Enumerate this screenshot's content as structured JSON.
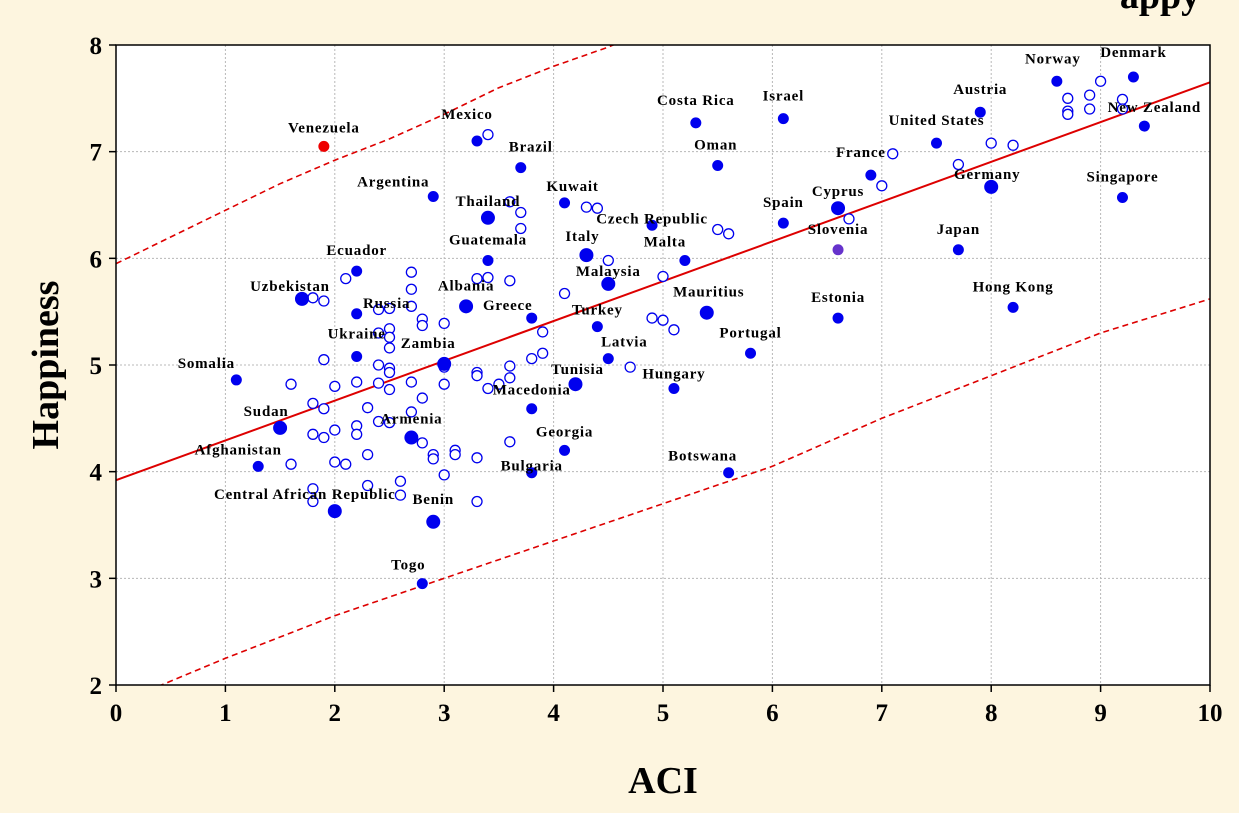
{
  "chart_data": {
    "type": "scatter",
    "title": "",
    "top_text_fragment": "appy",
    "xlabel": "ACI",
    "ylabel": "Happiness",
    "xlim": [
      0,
      10
    ],
    "ylim": [
      2,
      8
    ],
    "xticks": [
      0,
      1,
      2,
      3,
      4,
      5,
      6,
      7,
      8,
      9,
      10
    ],
    "yticks": [
      2,
      3,
      4,
      5,
      6,
      7,
      8
    ],
    "grid": true,
    "colors": {
      "filled": "#0000ee",
      "hollow_stroke": "#0000ee",
      "highlight": "#ee0000",
      "purple": "#6633cc",
      "fit_line": "#dd0000",
      "background": "#fdf5df",
      "plot_background": "#ffffff"
    },
    "regression_line": {
      "points": [
        [
          0,
          3.92
        ],
        [
          10,
          7.65
        ]
      ]
    },
    "confidence_upper": {
      "points": [
        [
          0,
          5.95
        ],
        [
          0.5,
          6.2
        ],
        [
          1,
          6.45
        ],
        [
          1.5,
          6.7
        ],
        [
          2,
          6.92
        ],
        [
          2.5,
          7.12
        ],
        [
          3,
          7.35
        ],
        [
          3.5,
          7.6
        ],
        [
          4,
          7.8
        ],
        [
          4.5,
          7.98
        ],
        [
          5,
          8.2
        ]
      ]
    },
    "confidence_lower": {
      "points": [
        [
          0.3,
          1.95
        ],
        [
          1,
          2.25
        ],
        [
          2,
          2.65
        ],
        [
          3,
          3.0
        ],
        [
          4,
          3.35
        ],
        [
          5,
          3.7
        ],
        [
          6,
          4.05
        ],
        [
          7,
          4.5
        ],
        [
          8,
          4.9
        ],
        [
          9,
          5.3
        ],
        [
          10,
          5.62
        ]
      ]
    },
    "labeled_points": [
      {
        "name": "Norway",
        "x": 8.6,
        "y": 7.66,
        "style": "filled"
      },
      {
        "name": "Denmark",
        "x": 9.3,
        "y": 7.7,
        "style": "filled"
      },
      {
        "name": "Austria",
        "x": 7.9,
        "y": 7.37,
        "style": "filled"
      },
      {
        "name": "New Zealand",
        "x": 9.4,
        "y": 7.24,
        "style": "filled"
      },
      {
        "name": "Israel",
        "x": 6.1,
        "y": 7.31,
        "style": "filled"
      },
      {
        "name": "Costa Rica",
        "x": 5.3,
        "y": 7.27,
        "style": "filled"
      },
      {
        "name": "Mexico",
        "x": 3.3,
        "y": 7.1,
        "style": "filled"
      },
      {
        "name": "Venezuela",
        "x": 1.9,
        "y": 7.05,
        "style": "highlight"
      },
      {
        "name": "United States",
        "x": 7.5,
        "y": 7.08,
        "style": "filled"
      },
      {
        "name": "Brazil",
        "x": 3.7,
        "y": 6.85,
        "style": "filled"
      },
      {
        "name": "Oman",
        "x": 5.5,
        "y": 6.87,
        "style": "filled"
      },
      {
        "name": "France",
        "x": 6.9,
        "y": 6.78,
        "style": "filled"
      },
      {
        "name": "Germany",
        "x": 8.0,
        "y": 6.67,
        "style": "filled_large"
      },
      {
        "name": "Singapore",
        "x": 9.2,
        "y": 6.57,
        "style": "filled"
      },
      {
        "name": "Argentina",
        "x": 2.9,
        "y": 6.58,
        "style": "filled"
      },
      {
        "name": "Kuwait",
        "x": 4.1,
        "y": 6.52,
        "style": "filled"
      },
      {
        "name": "Cyprus",
        "x": 6.6,
        "y": 6.47,
        "style": "filled_large"
      },
      {
        "name": "Thailand",
        "x": 3.4,
        "y": 6.38,
        "style": "filled_large"
      },
      {
        "name": "Czech Republic",
        "x": 4.9,
        "y": 6.31,
        "style": "filled"
      },
      {
        "name": "Spain",
        "x": 6.1,
        "y": 6.33,
        "style": "filled"
      },
      {
        "name": "Guatemala",
        "x": 3.4,
        "y": 5.98,
        "style": "filled"
      },
      {
        "name": "Italy",
        "x": 4.3,
        "y": 6.03,
        "style": "filled_large"
      },
      {
        "name": "Malta",
        "x": 5.2,
        "y": 5.98,
        "style": "filled"
      },
      {
        "name": "Slovenia",
        "x": 6.6,
        "y": 6.08,
        "style": "purple"
      },
      {
        "name": "Japan",
        "x": 7.7,
        "y": 6.08,
        "style": "filled"
      },
      {
        "name": "Ecuador",
        "x": 2.2,
        "y": 5.88,
        "style": "filled"
      },
      {
        "name": "Malaysia",
        "x": 4.5,
        "y": 5.76,
        "style": "filled_large"
      },
      {
        "name": "Uzbekistan",
        "x": 1.7,
        "y": 5.62,
        "style": "filled_large"
      },
      {
        "name": "Albania",
        "x": 3.2,
        "y": 5.55,
        "style": "filled_large"
      },
      {
        "name": "Russia",
        "x": 2.2,
        "y": 5.48,
        "style": "filled"
      },
      {
        "name": "Greece",
        "x": 3.8,
        "y": 5.44,
        "style": "filled"
      },
      {
        "name": "Mauritius",
        "x": 5.4,
        "y": 5.49,
        "style": "filled_large"
      },
      {
        "name": "Estonia",
        "x": 6.6,
        "y": 5.44,
        "style": "filled"
      },
      {
        "name": "Hong Kong",
        "x": 8.2,
        "y": 5.54,
        "style": "filled"
      },
      {
        "name": "Turkey",
        "x": 4.4,
        "y": 5.36,
        "style": "filled"
      },
      {
        "name": "Portugal",
        "x": 5.8,
        "y": 5.11,
        "style": "filled"
      },
      {
        "name": "Ukraine",
        "x": 2.2,
        "y": 5.08,
        "style": "filled"
      },
      {
        "name": "Zambia",
        "x": 3.0,
        "y": 5.01,
        "style": "filled_large"
      },
      {
        "name": "Latvia",
        "x": 4.5,
        "y": 5.06,
        "style": "filled"
      },
      {
        "name": "Somalia",
        "x": 1.1,
        "y": 4.86,
        "style": "filled"
      },
      {
        "name": "Tunisia",
        "x": 4.2,
        "y": 4.82,
        "style": "filled_large"
      },
      {
        "name": "Hungary",
        "x": 5.1,
        "y": 4.78,
        "style": "filled"
      },
      {
        "name": "Macedonia",
        "x": 3.8,
        "y": 4.59,
        "style": "filled"
      },
      {
        "name": "Sudan",
        "x": 1.5,
        "y": 4.41,
        "style": "filled_large"
      },
      {
        "name": "Armenia",
        "x": 2.7,
        "y": 4.32,
        "style": "filled_large"
      },
      {
        "name": "Georgia",
        "x": 4.1,
        "y": 4.2,
        "style": "filled"
      },
      {
        "name": "Afghanistan",
        "x": 1.3,
        "y": 4.05,
        "style": "filled"
      },
      {
        "name": "Bulgaria",
        "x": 3.8,
        "y": 3.99,
        "style": "filled"
      },
      {
        "name": "Botswana",
        "x": 5.6,
        "y": 3.99,
        "style": "filled"
      },
      {
        "name": "Central African Republic",
        "x": 2.0,
        "y": 3.63,
        "style": "filled_large"
      },
      {
        "name": "Benin",
        "x": 2.9,
        "y": 3.53,
        "style": "filled_large"
      },
      {
        "name": "Togo",
        "x": 2.8,
        "y": 2.95,
        "style": "filled"
      }
    ],
    "unlabeled_points": [
      {
        "x": 3.4,
        "y": 7.16
      },
      {
        "x": 3.6,
        "y": 6.53
      },
      {
        "x": 3.7,
        "y": 6.43
      },
      {
        "x": 3.7,
        "y": 6.28
      },
      {
        "x": 4.3,
        "y": 6.48
      },
      {
        "x": 4.4,
        "y": 6.47
      },
      {
        "x": 5.5,
        "y": 6.27
      },
      {
        "x": 5.6,
        "y": 6.23
      },
      {
        "x": 4.5,
        "y": 5.98
      },
      {
        "x": 5.0,
        "y": 5.83
      },
      {
        "x": 3.3,
        "y": 5.81
      },
      {
        "x": 3.4,
        "y": 5.82
      },
      {
        "x": 3.6,
        "y": 5.79
      },
      {
        "x": 4.1,
        "y": 5.67
      },
      {
        "x": 2.7,
        "y": 5.87
      },
      {
        "x": 2.1,
        "y": 5.81
      },
      {
        "x": 2.7,
        "y": 5.71
      },
      {
        "x": 1.8,
        "y": 5.63
      },
      {
        "x": 1.9,
        "y": 5.6
      },
      {
        "x": 2.4,
        "y": 5.52
      },
      {
        "x": 2.5,
        "y": 5.53
      },
      {
        "x": 2.7,
        "y": 5.55
      },
      {
        "x": 2.8,
        "y": 5.43
      },
      {
        "x": 2.8,
        "y": 5.37
      },
      {
        "x": 3.0,
        "y": 5.39
      },
      {
        "x": 2.5,
        "y": 5.34
      },
      {
        "x": 2.4,
        "y": 5.3
      },
      {
        "x": 2.5,
        "y": 5.26
      },
      {
        "x": 2.5,
        "y": 5.16
      },
      {
        "x": 3.9,
        "y": 5.31
      },
      {
        "x": 4.9,
        "y": 5.44
      },
      {
        "x": 5.0,
        "y": 5.42
      },
      {
        "x": 5.1,
        "y": 5.33
      },
      {
        "x": 3.9,
        "y": 5.11
      },
      {
        "x": 3.8,
        "y": 5.06
      },
      {
        "x": 3.6,
        "y": 4.99
      },
      {
        "x": 3.0,
        "y": 4.98
      },
      {
        "x": 2.4,
        "y": 5.0
      },
      {
        "x": 2.5,
        "y": 4.97
      },
      {
        "x": 2.5,
        "y": 4.93
      },
      {
        "x": 1.9,
        "y": 5.05
      },
      {
        "x": 3.3,
        "y": 4.93
      },
      {
        "x": 3.3,
        "y": 4.9
      },
      {
        "x": 3.6,
        "y": 4.88
      },
      {
        "x": 4.7,
        "y": 4.98
      },
      {
        "x": 3.5,
        "y": 4.82
      },
      {
        "x": 3.4,
        "y": 4.78
      },
      {
        "x": 1.6,
        "y": 4.82
      },
      {
        "x": 2.0,
        "y": 4.8
      },
      {
        "x": 2.2,
        "y": 4.84
      },
      {
        "x": 2.4,
        "y": 4.83
      },
      {
        "x": 2.5,
        "y": 4.77
      },
      {
        "x": 2.7,
        "y": 4.84
      },
      {
        "x": 3.0,
        "y": 4.82
      },
      {
        "x": 2.8,
        "y": 4.69
      },
      {
        "x": 1.8,
        "y": 4.64
      },
      {
        "x": 1.9,
        "y": 4.59
      },
      {
        "x": 2.3,
        "y": 4.6
      },
      {
        "x": 2.7,
        "y": 4.56
      },
      {
        "x": 2.2,
        "y": 4.43
      },
      {
        "x": 2.2,
        "y": 4.35
      },
      {
        "x": 2.0,
        "y": 4.39
      },
      {
        "x": 2.4,
        "y": 4.47
      },
      {
        "x": 2.5,
        "y": 4.46
      },
      {
        "x": 1.8,
        "y": 4.35
      },
      {
        "x": 1.9,
        "y": 4.32
      },
      {
        "x": 2.8,
        "y": 4.27
      },
      {
        "x": 3.6,
        "y": 4.28
      },
      {
        "x": 3.1,
        "y": 4.2
      },
      {
        "x": 3.1,
        "y": 4.16
      },
      {
        "x": 2.9,
        "y": 4.16
      },
      {
        "x": 2.9,
        "y": 4.12
      },
      {
        "x": 3.3,
        "y": 4.13
      },
      {
        "x": 2.3,
        "y": 4.16
      },
      {
        "x": 2.0,
        "y": 4.09
      },
      {
        "x": 2.1,
        "y": 4.07
      },
      {
        "x": 1.6,
        "y": 4.07
      },
      {
        "x": 3.0,
        "y": 3.97
      },
      {
        "x": 2.6,
        "y": 3.91
      },
      {
        "x": 2.3,
        "y": 3.87
      },
      {
        "x": 1.8,
        "y": 3.84
      },
      {
        "x": 1.8,
        "y": 3.72
      },
      {
        "x": 2.6,
        "y": 3.78
      },
      {
        "x": 3.3,
        "y": 3.72
      },
      {
        "x": 6.7,
        "y": 6.37
      },
      {
        "x": 7.0,
        "y": 6.68
      },
      {
        "x": 7.1,
        "y": 6.98
      },
      {
        "x": 7.7,
        "y": 6.88
      },
      {
        "x": 8.0,
        "y": 7.08
      },
      {
        "x": 8.2,
        "y": 7.06
      },
      {
        "x": 8.7,
        "y": 7.5
      },
      {
        "x": 8.7,
        "y": 7.38
      },
      {
        "x": 8.7,
        "y": 7.35
      },
      {
        "x": 8.9,
        "y": 7.53
      },
      {
        "x": 8.9,
        "y": 7.4
      },
      {
        "x": 9.0,
        "y": 7.66
      },
      {
        "x": 9.2,
        "y": 7.49
      },
      {
        "x": 9.2,
        "y": 7.4
      }
    ]
  }
}
